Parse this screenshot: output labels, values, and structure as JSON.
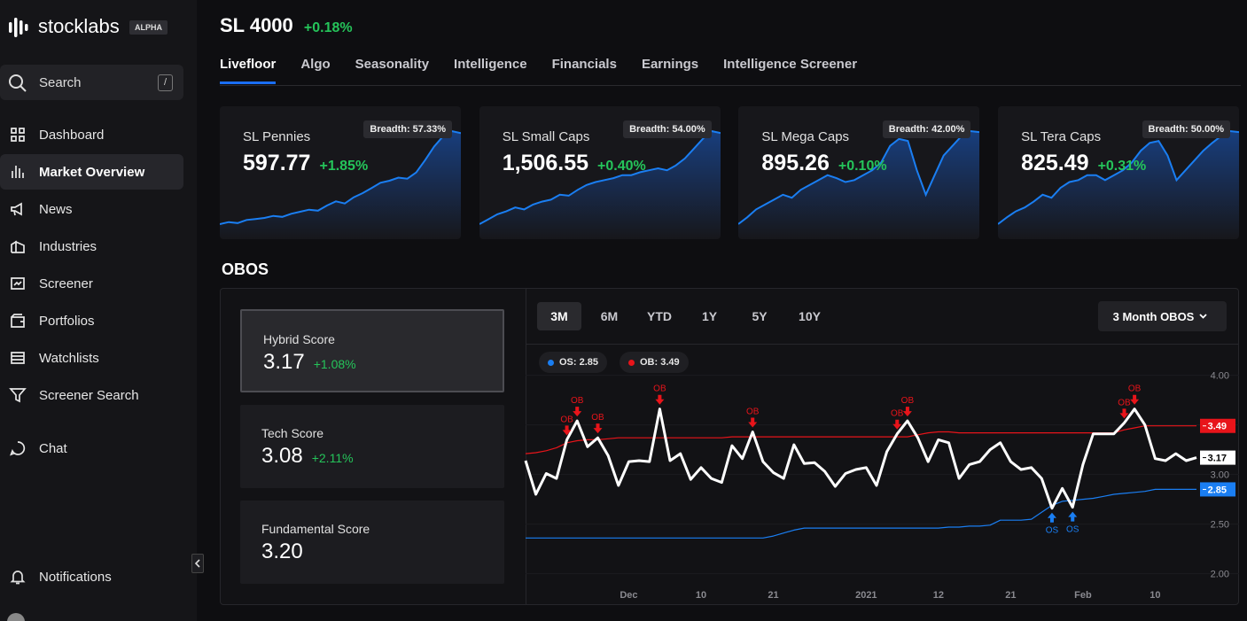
{
  "sidebar": {
    "brand": "stocklabs",
    "badge": "ALPHA",
    "search": {
      "placeholder": "Search",
      "shortcut": "/"
    },
    "nav": [
      "Dashboard",
      "Market Overview",
      "News",
      "Industries",
      "Screener",
      "Portfolios",
      "Watchlists",
      "Screener Search",
      "Chat"
    ],
    "active": 1,
    "footer": "Notifications"
  },
  "header": {
    "title": "SL 4000",
    "change": "+0.18%"
  },
  "tabs": {
    "items": [
      "Livefloor",
      "Algo",
      "Seasonality",
      "Intelligence",
      "Financials",
      "Earnings",
      "Intelligence Screener"
    ],
    "active": 0
  },
  "cards": [
    {
      "name": "SL Pennies",
      "value": "597.77",
      "change": "+1.85%",
      "breadth": "Breadth: 57.33%",
      "sparkline": [
        10,
        12,
        11,
        14,
        15,
        16,
        18,
        17,
        20,
        22,
        24,
        23,
        28,
        32,
        30,
        36,
        40,
        45,
        50,
        52,
        55,
        54,
        60,
        72,
        85,
        95,
        100,
        98
      ]
    },
    {
      "name": "SL Small Caps",
      "value": "1,506.55",
      "change": "+0.40%",
      "breadth": "Breadth: 54.00%",
      "sparkline": [
        5,
        10,
        15,
        18,
        22,
        20,
        25,
        28,
        30,
        35,
        34,
        40,
        45,
        48,
        50,
        52,
        55,
        55,
        58,
        60,
        62,
        60,
        65,
        72,
        82,
        92,
        100,
        98
      ]
    },
    {
      "name": "SL Mega Caps",
      "value": "895.26",
      "change": "+0.10%",
      "breadth": "Breadth: 42.00%",
      "sparkline": [
        5,
        12,
        20,
        25,
        30,
        35,
        32,
        40,
        45,
        50,
        55,
        52,
        48,
        50,
        55,
        60,
        68,
        85,
        92,
        90,
        60,
        35,
        55,
        75,
        85,
        95,
        100,
        99
      ]
    },
    {
      "name": "SL Tera Caps",
      "value": "825.49",
      "change": "+0.31%",
      "breadth": "Breadth: 50.00%",
      "sparkline": [
        5,
        12,
        18,
        22,
        28,
        35,
        32,
        42,
        48,
        50,
        55,
        55,
        50,
        55,
        60,
        68,
        80,
        88,
        90,
        75,
        50,
        60,
        70,
        80,
        88,
        95,
        100,
        99
      ]
    }
  ],
  "obos": {
    "title": "OBOS",
    "scores": [
      {
        "name": "Hybrid Score",
        "value": "3.17",
        "change": "+1.08%"
      },
      {
        "name": "Tech Score",
        "value": "3.08",
        "change": "+2.11%"
      },
      {
        "name": "Fundamental Score",
        "value": "3.20"
      }
    ],
    "selected": 0,
    "ranges": [
      "3M",
      "6M",
      "YTD",
      "1Y",
      "5Y",
      "10Y"
    ],
    "active_range": 0,
    "dropdown": "3 Month OBOS"
  },
  "chart_data": {
    "type": "line",
    "categories": [
      null,
      null,
      null,
      null,
      null,
      null,
      null,
      null,
      null,
      null,
      "Dec",
      null,
      null,
      null,
      null,
      null,
      null,
      "10",
      null,
      null,
      null,
      null,
      null,
      null,
      "21",
      null,
      null,
      null,
      null,
      null,
      null,
      null,
      null,
      "2021",
      null,
      null,
      null,
      null,
      null,
      null,
      "12",
      null,
      null,
      null,
      null,
      null,
      null,
      "21",
      null,
      null,
      null,
      null,
      null,
      null,
      "Feb",
      null,
      null,
      null,
      null,
      null,
      null,
      "10",
      null,
      null,
      null,
      null
    ],
    "series": [
      {
        "color": "#ffffff",
        "end_label": "3.17",
        "values": [
          3.14,
          2.8,
          3.01,
          2.96,
          3.35,
          3.54,
          3.28,
          3.37,
          3.19,
          2.89,
          3.13,
          3.14,
          3.13,
          3.66,
          3.14,
          3.21,
          2.95,
          3.07,
          2.96,
          2.92,
          3.29,
          3.16,
          3.43,
          3.13,
          3.02,
          2.96,
          3.3,
          3.11,
          3.12,
          3.03,
          2.88,
          3.01,
          3.05,
          3.07,
          2.89,
          3.23,
          3.41,
          3.54,
          3.37,
          3.13,
          3.35,
          3.32,
          2.96,
          3.1,
          3.13,
          3.25,
          3.32,
          3.13,
          3.05,
          3.07,
          2.96,
          2.66,
          2.86,
          2.67,
          3.1,
          3.41,
          3.41,
          3.41,
          3.52,
          3.66,
          3.5,
          3.16,
          3.14,
          3.21,
          3.14,
          3.17
        ],
        "signals": [
          null,
          null,
          null,
          null,
          "OB",
          "OB",
          null,
          "OB",
          null,
          null,
          null,
          null,
          null,
          "OB",
          null,
          null,
          null,
          null,
          null,
          null,
          null,
          null,
          "OB",
          null,
          null,
          null,
          null,
          null,
          null,
          null,
          null,
          null,
          null,
          null,
          null,
          null,
          "OB",
          "OB",
          null,
          null,
          null,
          null,
          null,
          null,
          null,
          null,
          null,
          null,
          null,
          null,
          null,
          "OS",
          null,
          "OS",
          null,
          null,
          null,
          null,
          "OB",
          "OB",
          null,
          null,
          null,
          null,
          null,
          null
        ]
      },
      {
        "name": "OB",
        "color": "#e8141a",
        "legend_label": "OB: 3.49",
        "end_label": "3.49",
        "values": [
          3.21,
          3.22,
          3.24,
          3.27,
          3.32,
          3.34,
          3.35,
          3.35,
          3.36,
          3.37,
          3.37,
          3.37,
          3.37,
          3.37,
          3.37,
          3.37,
          3.37,
          3.37,
          3.37,
          3.37,
          3.38,
          3.38,
          3.38,
          3.38,
          3.38,
          3.38,
          3.38,
          3.38,
          3.38,
          3.38,
          3.38,
          3.38,
          3.38,
          3.38,
          3.38,
          3.38,
          3.38,
          3.38,
          3.4,
          3.42,
          3.43,
          3.43,
          3.42,
          3.42,
          3.42,
          3.42,
          3.42,
          3.42,
          3.42,
          3.42,
          3.42,
          3.42,
          3.42,
          3.42,
          3.42,
          3.42,
          3.42,
          3.42,
          3.45,
          3.47,
          3.49,
          3.49,
          3.49,
          3.49,
          3.49,
          3.49
        ]
      },
      {
        "name": "OS",
        "color": "#1a7ef2",
        "legend_label": "OS: 2.85",
        "end_label": "2.85",
        "values": [
          2.36,
          2.36,
          2.36,
          2.36,
          2.36,
          2.36,
          2.36,
          2.36,
          2.36,
          2.36,
          2.36,
          2.36,
          2.36,
          2.36,
          2.36,
          2.36,
          2.36,
          2.36,
          2.36,
          2.36,
          2.36,
          2.36,
          2.36,
          2.36,
          2.38,
          2.41,
          2.44,
          2.46,
          2.46,
          2.46,
          2.46,
          2.46,
          2.46,
          2.46,
          2.46,
          2.46,
          2.46,
          2.46,
          2.46,
          2.46,
          2.46,
          2.47,
          2.47,
          2.48,
          2.48,
          2.49,
          2.54,
          2.54,
          2.54,
          2.55,
          2.62,
          2.69,
          2.73,
          2.74,
          2.75,
          2.76,
          2.78,
          2.8,
          2.81,
          2.82,
          2.83,
          2.85,
          2.85,
          2.85,
          2.85,
          2.85
        ]
      }
    ],
    "legend_order": [
      2,
      1
    ],
    "ylim": [
      1.89,
      4.05
    ],
    "yticks": [
      {
        "value": 2,
        "label": "2.00"
      },
      {
        "value": 2.5,
        "label": "2.50"
      },
      {
        "value": 3,
        "label": "3.00"
      },
      {
        "value": 3.5,
        "label": "3.50"
      },
      {
        "value": 4,
        "label": "4.00"
      }
    ],
    "grid": true
  }
}
